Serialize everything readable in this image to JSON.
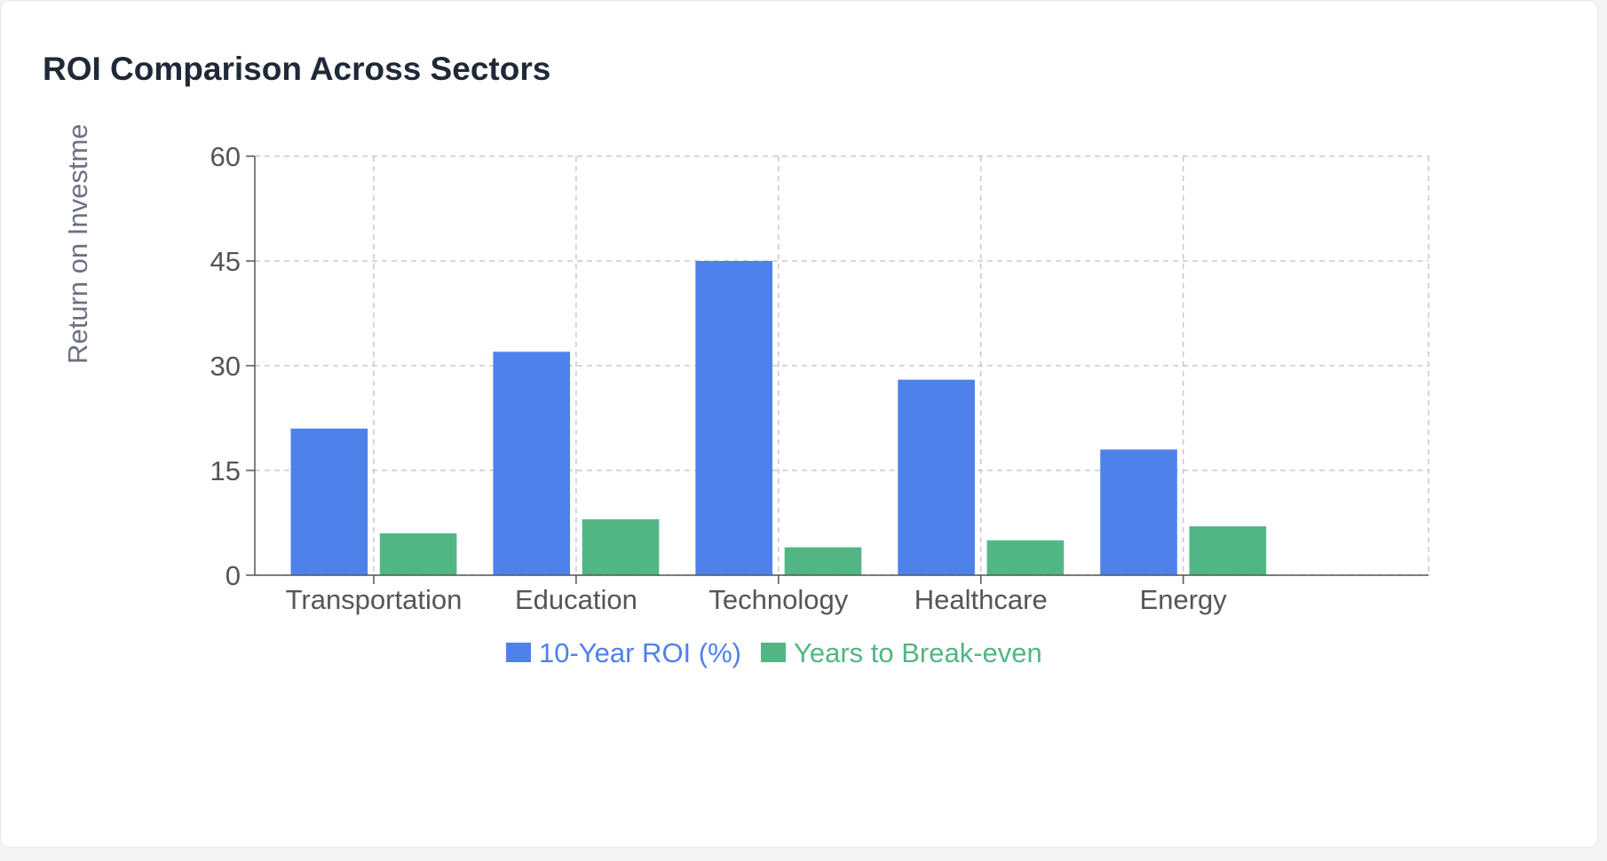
{
  "card": {
    "title": "ROI Comparison Across Sectors"
  },
  "chart_data": {
    "type": "bar",
    "categories": [
      "Transportation",
      "Education",
      "Technology",
      "Healthcare",
      "Energy"
    ],
    "series": [
      {
        "name": "10-Year ROI (%)",
        "color": "#4e81ea",
        "values": [
          21,
          32,
          45,
          28,
          18
        ]
      },
      {
        "name": "Years to Break-even",
        "color": "#52b684",
        "values": [
          6,
          8,
          4,
          5,
          7
        ]
      }
    ],
    "ylabel": "Return on Investme",
    "ylim": [
      0,
      60
    ],
    "yticks": [
      0,
      15,
      30,
      45,
      60
    ],
    "grid": true,
    "legend": "bottom-center"
  }
}
